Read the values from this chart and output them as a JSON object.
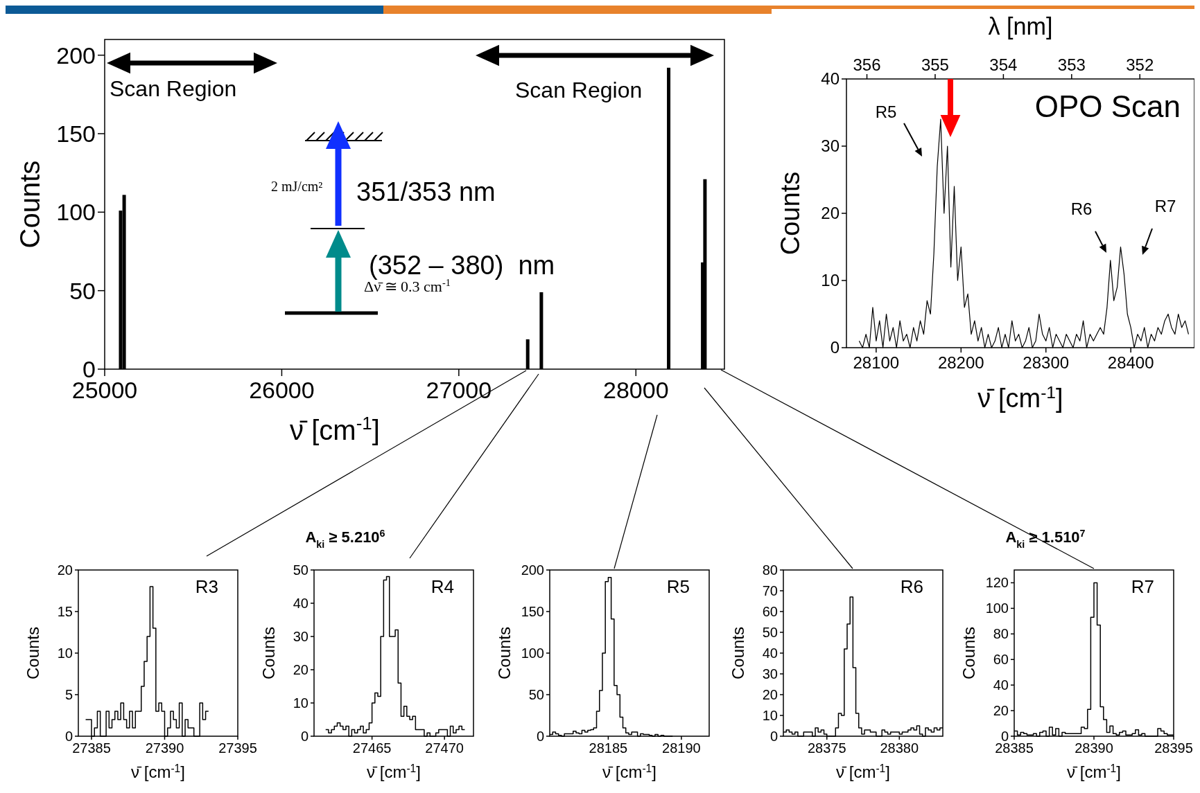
{
  "chart_data": [
    {
      "type": "bar",
      "x": [
        25090,
        25110,
        27389,
        27466,
        28185,
        28377,
        28390
      ],
      "values": [
        101,
        111,
        19,
        49,
        192,
        68,
        121
      ],
      "color": "#000000",
      "xlim": [
        25000,
        28500
      ],
      "ylim": [
        0,
        210
      ],
      "xticks": [
        25000,
        26000,
        27000,
        28000
      ],
      "yticks": [
        0,
        50,
        100,
        150,
        200
      ],
      "xlabel": "ν̄ [cm$^{-1}$]",
      "ylabel": "Counts",
      "annotations": [
        "Scan Region",
        "Scan Region",
        "351/353 nm",
        "(352 – 380)  nm",
        "2 mJ/cm²",
        "Δν̄ ≅ 0.3 cm$^{-1}$"
      ]
    },
    {
      "type": "line",
      "color": "#000000",
      "xlim": [
        28065,
        28475
      ],
      "ylim": [
        0,
        40
      ],
      "xticks": [
        28100,
        28200,
        28300,
        28400
      ],
      "yticks": [
        0,
        10,
        20,
        30,
        40
      ],
      "x2lim": [
        356.3,
        351.2
      ],
      "x2ticks": [
        356,
        355,
        354,
        353,
        352
      ],
      "x2label": "λ [nm]",
      "xlabel": "ν̄ [cm$^{-1}$]",
      "ylabel": "Counts",
      "x": [
        28080,
        28084,
        28088,
        28092,
        28096,
        28100,
        28104,
        28108,
        28112,
        28116,
        28120,
        28124,
        28128,
        28132,
        28136,
        28140,
        28144,
        28148,
        28152,
        28156,
        28160,
        28164,
        28168,
        28172,
        28176,
        28180,
        28184,
        28188,
        28192,
        28196,
        28200,
        28204,
        28208,
        28212,
        28216,
        28220,
        28224,
        28228,
        28232,
        28236,
        28240,
        28244,
        28248,
        28252,
        28256,
        28260,
        28264,
        28268,
        28272,
        28276,
        28280,
        28284,
        28288,
        28292,
        28296,
        28300,
        28304,
        28308,
        28312,
        28316,
        28320,
        28324,
        28328,
        28332,
        28336,
        28340,
        28344,
        28348,
        28352,
        28356,
        28360,
        28364,
        28368,
        28372,
        28376,
        28380,
        28384,
        28388,
        28392,
        28396,
        28400,
        28404,
        28408,
        28412,
        28416,
        28420,
        28424,
        28428,
        28432,
        28436,
        28440,
        28444,
        28448,
        28452,
        28456,
        28460,
        28464,
        28468
      ],
      "values": [
        1,
        0,
        2,
        0,
        6,
        1,
        4,
        0,
        5,
        1,
        3,
        0,
        4,
        1,
        2,
        0,
        3,
        1,
        4,
        2,
        7,
        5,
        14,
        27,
        34,
        20,
        30,
        12,
        24,
        10,
        15,
        6,
        8,
        2,
        4,
        1,
        3,
        0,
        2,
        0,
        1,
        3,
        0,
        2,
        0,
        4,
        1,
        2,
        0,
        1,
        3,
        0,
        1,
        5,
        2,
        1,
        3,
        0,
        2,
        1,
        0,
        2,
        1,
        0,
        2,
        1,
        4,
        0,
        2,
        1,
        2,
        3,
        2,
        6,
        13,
        7,
        9,
        15,
        11,
        5,
        3,
        0,
        2,
        1,
        3,
        0,
        2,
        1,
        3,
        2,
        4,
        5,
        3,
        2,
        5,
        3,
        4,
        2
      ],
      "annotations": [
        "R5",
        "R6",
        "R7",
        "OPO Scan"
      ]
    },
    {
      "type": "step",
      "color": "#000000",
      "xlim": [
        27384.1,
        27395
      ],
      "ylim": [
        0,
        20
      ],
      "xticks": [
        27385,
        27390,
        27395
      ],
      "yticks": [
        0,
        5,
        10,
        15,
        20
      ],
      "xlabel": "ν̄ [cm$^{-1}$]",
      "ylabel": "Counts",
      "annotations": [
        "R3"
      ],
      "x": [
        27384.7,
        27384.9,
        27385.1,
        27385.3,
        27385.5,
        27385.7,
        27385.9,
        27386.1,
        27386.3,
        27386.5,
        27386.7,
        27386.9,
        27387.1,
        27387.3,
        27387.5,
        27387.7,
        27387.9,
        27388.1,
        27388.3,
        27388.5,
        27388.7,
        27388.9,
        27389.1,
        27389.3,
        27389.5,
        27389.7,
        27389.9,
        27390.1,
        27390.3,
        27390.5,
        27390.7,
        27390.9,
        27391.1,
        27391.3,
        27391.5,
        27391.7,
        27391.9,
        27392.1,
        27392.3,
        27392.5,
        27392.7,
        27392.9
      ],
      "values": [
        2,
        2,
        0,
        1,
        3,
        0,
        0,
        3,
        1,
        2,
        3,
        2,
        4,
        2,
        1,
        3,
        1,
        3,
        3,
        6,
        9,
        12,
        18,
        13,
        3,
        4,
        3,
        0,
        1,
        3,
        2,
        1,
        4,
        0,
        2,
        1,
        1,
        0,
        0,
        4,
        2,
        3
      ]
    },
    {
      "type": "step",
      "color": "#000000",
      "title": "A$_{ki}$ ≥ 5.210$^{6}$",
      "xlim": [
        27461,
        27472
      ],
      "ylim": [
        0,
        50
      ],
      "xticks": [
        27465,
        27470
      ],
      "yticks": [
        0,
        10,
        20,
        30,
        40,
        50
      ],
      "xlabel": "ν̄ [cm$^{-1}$]",
      "ylabel": "Counts",
      "annotations": [
        "R4"
      ],
      "x": [
        27461.9,
        27462.1,
        27462.3,
        27462.5,
        27462.7,
        27462.9,
        27463.1,
        27463.3,
        27463.5,
        27463.7,
        27463.9,
        27464.1,
        27464.3,
        27464.5,
        27464.7,
        27464.9,
        27465.1,
        27465.3,
        27465.5,
        27465.7,
        27465.9,
        27466.1,
        27466.3,
        27466.5,
        27466.7,
        27466.9,
        27467.1,
        27467.3,
        27467.5,
        27467.7,
        27467.9,
        27468.1,
        27468.3,
        27468.5,
        27468.7,
        27468.9,
        27469.1,
        27469.3,
        27469.5,
        27469.7,
        27469.9,
        27470.1,
        27470.3,
        27470.5,
        27470.7,
        27470.9,
        27471.1,
        27471.3
      ],
      "values": [
        2,
        1,
        2,
        3,
        4,
        3,
        2,
        3,
        0,
        2,
        1,
        2,
        3,
        1,
        2,
        4,
        10,
        13,
        12,
        30,
        47,
        48,
        30,
        30,
        32,
        16,
        6,
        9,
        6,
        5,
        6,
        2,
        2,
        2,
        0,
        1,
        0,
        0,
        1,
        2,
        2,
        2,
        0,
        3,
        1,
        2,
        3,
        2
      ]
    },
    {
      "type": "step",
      "color": "#000000",
      "xlim": [
        28181,
        28191.9
      ],
      "ylim": [
        0,
        200
      ],
      "xticks": [
        28185,
        28190
      ],
      "yticks": [
        0,
        50,
        100,
        150,
        200
      ],
      "xlabel": "ν̄ [cm$^{-1}$]",
      "ylabel": "Counts",
      "annotations": [
        "R5"
      ],
      "x": [
        28181.1,
        28181.3,
        28181.5,
        28181.7,
        28181.9,
        28182.1,
        28182.3,
        28182.5,
        28182.7,
        28182.9,
        28183.1,
        28183.3,
        28183.5,
        28183.7,
        28183.9,
        28184.1,
        28184.3,
        28184.5,
        28184.7,
        28184.9,
        28185.1,
        28185.3,
        28185.5,
        28185.7,
        28185.9,
        28186.1,
        28186.3,
        28186.5,
        28186.7,
        28186.9,
        28187.1,
        28187.3,
        28187.5,
        28187.7,
        28187.9,
        28188.1,
        28188.3,
        28188.5,
        28188.7,
        28188.9,
        28189.1,
        28189.3
      ],
      "values": [
        2,
        5,
        3,
        1,
        0,
        3,
        3,
        3,
        6,
        4,
        3,
        7,
        5,
        7,
        8,
        10,
        30,
        55,
        100,
        186,
        191,
        141,
        61,
        50,
        23,
        10,
        4,
        2,
        5,
        5,
        0,
        3,
        2,
        2,
        1,
        0,
        2,
        0,
        1,
        0,
        0,
        0
      ]
    },
    {
      "type": "step",
      "color": "#000000",
      "xlim": [
        28372,
        28383
      ],
      "ylim": [
        0,
        80
      ],
      "xticks": [
        28375,
        28380
      ],
      "yticks": [
        0,
        10,
        20,
        30,
        40,
        50,
        60,
        70,
        80
      ],
      "xlabel": "ν̄ [cm$^{-1}$]",
      "ylabel": "Counts",
      "annotations": [
        "R6"
      ],
      "x": [
        28372.1,
        28372.3,
        28372.5,
        28372.7,
        28372.9,
        28373.1,
        28373.3,
        28373.5,
        28373.7,
        28373.9,
        28374.1,
        28374.3,
        28374.5,
        28374.7,
        28374.9,
        28375.1,
        28375.3,
        28375.5,
        28375.7,
        28375.9,
        28376.1,
        28376.3,
        28376.5,
        28376.7,
        28376.9,
        28377.1,
        28377.3,
        28377.5,
        28377.7,
        28377.9,
        28378.1,
        28378.3,
        28378.5,
        28378.7,
        28378.9,
        28379.1,
        28379.3,
        28379.5,
        28379.7,
        28379.9,
        28380.1,
        28380.3,
        28380.5,
        28380.7,
        28380.9,
        28381.1,
        28381.3,
        28381.5,
        28381.7,
        28381.9,
        28382.1,
        28382.3,
        28382.5,
        28382.7,
        28382.9
      ],
      "values": [
        2,
        3,
        2,
        1,
        2,
        0,
        0,
        2,
        2,
        2,
        0,
        4,
        2,
        3,
        1,
        0,
        0,
        0,
        4,
        11,
        10,
        42,
        54,
        67,
        33,
        11,
        4,
        1,
        3,
        3,
        2,
        2,
        0,
        0,
        3,
        2,
        1,
        2,
        2,
        2,
        1,
        2,
        2,
        3,
        4,
        3,
        5,
        1,
        0,
        4,
        3,
        2,
        4,
        3,
        4
      ]
    },
    {
      "type": "step",
      "color": "#000000",
      "title": "A$_{ki}$ ≥ 1.510$^{7}$",
      "xlim": [
        28385,
        28395
      ],
      "ylim": [
        0,
        130
      ],
      "xticks": [
        28385,
        28390,
        28395
      ],
      "yticks": [
        0,
        20,
        40,
        60,
        80,
        100,
        120
      ],
      "xlabel": "ν̄ [cm$^{-1}$]",
      "ylabel": "Counts",
      "annotations": [
        "R7"
      ],
      "x": [
        28385.1,
        28385.3,
        28385.5,
        28385.7,
        28385.9,
        28386.1,
        28386.3,
        28386.5,
        28386.7,
        28386.9,
        28387.1,
        28387.3,
        28387.5,
        28387.7,
        28387.9,
        28388.1,
        28388.3,
        28388.5,
        28388.7,
        28388.9,
        28389.1,
        28389.3,
        28389.5,
        28389.7,
        28389.9,
        28390.1,
        28390.3,
        28390.5,
        28390.7,
        28390.9,
        28391.1,
        28391.3,
        28391.5,
        28391.7,
        28391.9,
        28392.1,
        28392.3,
        28392.5,
        28392.7,
        28392.9,
        28393.1,
        28393.3,
        28393.5,
        28393.7,
        28393.9,
        28394.1,
        28394.3,
        28394.5,
        28394.7,
        28394.9
      ],
      "values": [
        4,
        1,
        3,
        2,
        1,
        1,
        2,
        0,
        3,
        4,
        0,
        7,
        1,
        6,
        0,
        3,
        2,
        2,
        2,
        2,
        2,
        7,
        6,
        21,
        93,
        120,
        87,
        23,
        13,
        3,
        8,
        2,
        1,
        3,
        4,
        1,
        1,
        2,
        5,
        1,
        2,
        0,
        0,
        0,
        0,
        6,
        4,
        2,
        1,
        1
      ]
    }
  ]
}
